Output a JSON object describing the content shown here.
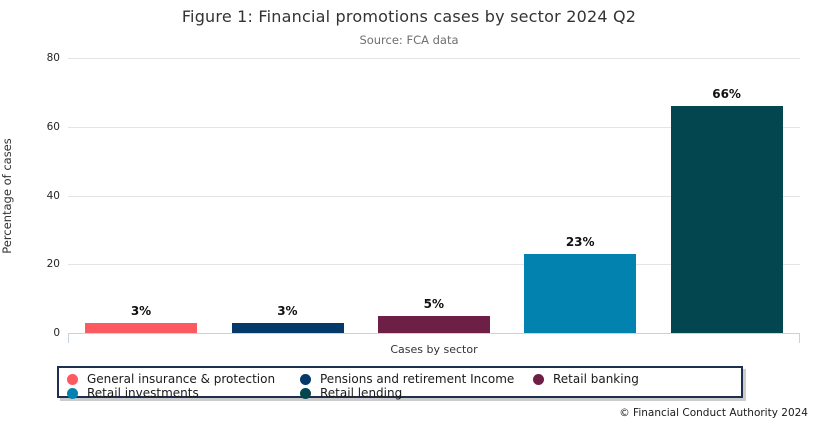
{
  "chart": {
    "title": "Figure 1: Financial promotions cases by sector 2024 Q2",
    "subtitle": "Source: FCA data",
    "ylabel": "Percentage of cases",
    "xlabel": "Cases by sector",
    "footer": "© Financial Conduct Authority 2024"
  },
  "chart_data": {
    "type": "bar",
    "title": "Figure 1: Financial promotions cases by sector 2024 Q2",
    "subtitle": "Source: FCA data",
    "categories": [
      "General insurance & protection",
      "Pensions and retirement Income",
      "Retail banking",
      "Retail investments",
      "Retail lending"
    ],
    "values": [
      3,
      3,
      5,
      23,
      66
    ],
    "value_labels": [
      "3%",
      "3%",
      "5%",
      "23%",
      "66%"
    ],
    "colors": [
      "#FA5A60",
      "#04396A",
      "#6E1F45",
      "#0282AE",
      "#03464F"
    ],
    "xlabel": "Cases by sector",
    "ylabel": "Percentage of cases",
    "ylim": [
      0,
      80
    ],
    "yticks": [
      0,
      20,
      40,
      60,
      80
    ],
    "grid": true,
    "legend_position": "bottom",
    "footer": "© Financial Conduct Authority 2024"
  },
  "legend": {
    "items": [
      {
        "label": "General insurance & protection",
        "color": "#FA5A60"
      },
      {
        "label": "Pensions and retirement Income",
        "color": "#04396A"
      },
      {
        "label": "Retail banking",
        "color": "#6E1F45"
      },
      {
        "label": "Retail investments",
        "color": "#0282AE"
      },
      {
        "label": "Retail lending",
        "color": "#03464F"
      }
    ]
  }
}
